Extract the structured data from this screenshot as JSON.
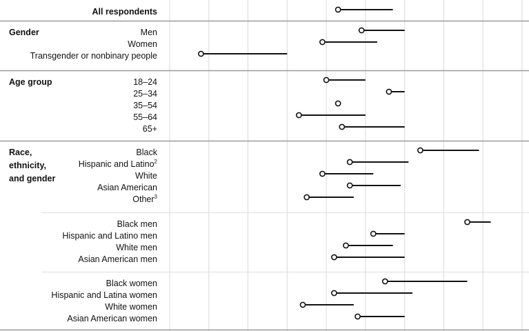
{
  "chart_data": {
    "type": "dumbbell",
    "title": "",
    "xlabel": "",
    "ylabel": "",
    "xlim": [
      0,
      9
    ],
    "grid": true,
    "sections": [
      {
        "group_label": [],
        "rows": [
          {
            "label": "All respondents",
            "note": "",
            "bold": true,
            "start": 4.3,
            "end": 5.7
          }
        ]
      },
      {
        "group_label": [
          "Gender"
        ],
        "rows": [
          {
            "label": "Men",
            "note": "",
            "start": 4.9,
            "end": 6.0
          },
          {
            "label": "Women",
            "note": "",
            "start": 3.9,
            "end": 5.3
          },
          {
            "label": "Transgender or nonbinary people",
            "note": "",
            "start": 0.8,
            "end": 3.0
          }
        ]
      },
      {
        "group_label": [
          "Age group"
        ],
        "rows": [
          {
            "label": "18–24",
            "note": "",
            "start": 4.0,
            "end": 5.0
          },
          {
            "label": "25–34",
            "note": "",
            "start": 5.6,
            "end": 6.0
          },
          {
            "label": "35–54",
            "note": "",
            "start": 4.3,
            "end": 4.3
          },
          {
            "label": "55–64",
            "note": "",
            "start": 3.3,
            "end": 5.0
          },
          {
            "label": "65+",
            "note": "",
            "start": 4.4,
            "end": 6.0
          }
        ]
      },
      {
        "group_label": [
          "Race,",
          "ethnicity,",
          "and gender"
        ],
        "rows": [
          {
            "label": "Black",
            "note": "",
            "start": 6.4,
            "end": 7.9
          },
          {
            "label": "Hispanic and Latino",
            "note": "2",
            "start": 4.6,
            "end": 6.1
          },
          {
            "label": "White",
            "note": "",
            "start": 3.9,
            "end": 5.2
          },
          {
            "label": "Asian American",
            "note": "",
            "start": 4.6,
            "end": 5.9
          },
          {
            "label": "Other",
            "note": "3",
            "start": 3.5,
            "end": 4.7
          }
        ]
      },
      {
        "group_label": [],
        "subsection": true,
        "rows": [
          {
            "label": "Black men",
            "note": "",
            "start": 7.6,
            "end": 8.2
          },
          {
            "label": "Hispanic and Latino men",
            "note": "",
            "start": 5.2,
            "end": 6.0
          },
          {
            "label": "White men",
            "note": "",
            "start": 4.5,
            "end": 5.7
          },
          {
            "label": "Asian American men",
            "note": "",
            "start": 4.2,
            "end": 6.0
          }
        ]
      },
      {
        "group_label": [],
        "subsection": true,
        "rows": [
          {
            "label": "Black women",
            "note": "",
            "start": 5.5,
            "end": 7.6
          },
          {
            "label": "Hispanic and Latina women",
            "note": "",
            "start": 4.2,
            "end": 6.2
          },
          {
            "label": "White women",
            "note": "",
            "start": 3.4,
            "end": 4.7
          },
          {
            "label": "Asian American women",
            "note": "",
            "start": 4.8,
            "end": 6.0
          }
        ]
      }
    ]
  }
}
